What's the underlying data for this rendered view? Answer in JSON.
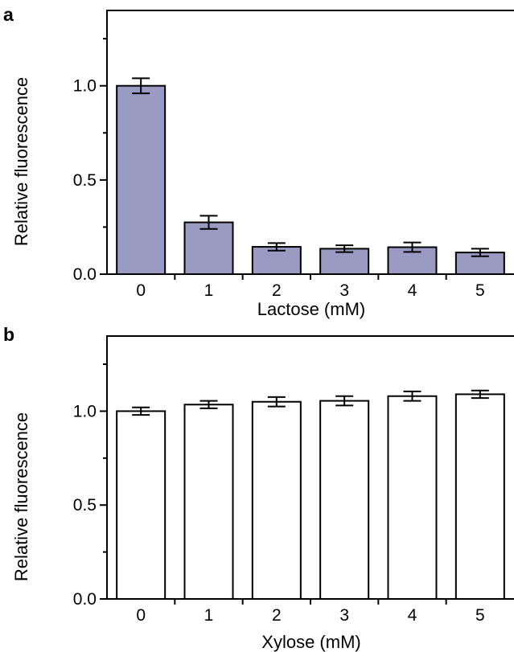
{
  "chart_data": [
    {
      "type": "bar",
      "panel_label": "a",
      "categories": [
        "0",
        "1",
        "2",
        "3",
        "4",
        "5"
      ],
      "values": [
        1.0,
        0.275,
        0.145,
        0.135,
        0.143,
        0.115
      ],
      "errors": [
        0.04,
        0.035,
        0.02,
        0.018,
        0.025,
        0.02
      ],
      "xlabel": "Lactose (mM)",
      "ylabel": "Relative fluorescence",
      "ylim": [
        0,
        1.4
      ],
      "yticks": [
        0.0,
        0.5,
        1.0
      ],
      "yticks_labels": [
        "0.0",
        "0.5",
        "1.0"
      ],
      "bar_color": "#9b9ac2",
      "grid": false
    },
    {
      "type": "bar",
      "panel_label": "b",
      "categories": [
        "0",
        "1",
        "2",
        "3",
        "4",
        "5"
      ],
      "values": [
        1.0,
        1.035,
        1.05,
        1.055,
        1.08,
        1.09
      ],
      "errors": [
        0.02,
        0.02,
        0.025,
        0.025,
        0.025,
        0.02
      ],
      "xlabel": "Xylose (mM)",
      "ylabel": "Relative fluorescence",
      "ylim": [
        0,
        1.4
      ],
      "yticks": [
        0.0,
        0.5,
        1.0
      ],
      "yticks_labels": [
        "0.0",
        "0.5",
        "1.0"
      ],
      "bar_color": "#ffffff",
      "grid": false
    }
  ]
}
